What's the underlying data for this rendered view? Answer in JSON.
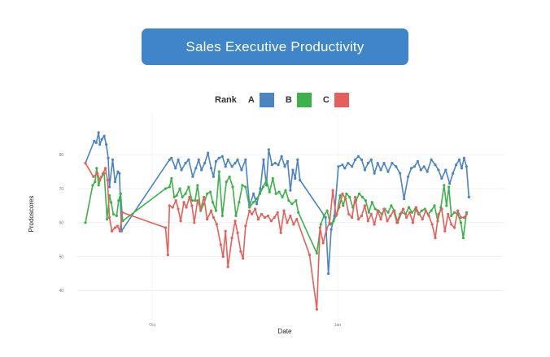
{
  "header": {
    "title": "Sales Executive Productivity"
  },
  "chart_data": {
    "type": "line",
    "title": "Sales Executive Productivity",
    "xlabel": "Date",
    "ylabel": "Prodoscores",
    "ylim": [
      31,
      92
    ],
    "yticks": [
      40,
      50,
      60,
      70,
      80
    ],
    "xticks": [
      {
        "label": "Oct",
        "pos": 0.167
      },
      {
        "label": "Jan",
        "pos": 0.63
      }
    ],
    "grid": true,
    "legend": {
      "title": "Rank",
      "placement": "top-center"
    },
    "series": [
      {
        "name": "A",
        "color": "#4a84c2",
        "points": [
          [
            0.0,
            77.5
          ],
          [
            0.022,
            84.0
          ],
          [
            0.027,
            83.5
          ],
          [
            0.033,
            86.5
          ],
          [
            0.036,
            83.0
          ],
          [
            0.041,
            84.5
          ],
          [
            0.047,
            85.5
          ],
          [
            0.052,
            83.0
          ],
          [
            0.057,
            79.0
          ],
          [
            0.06,
            70.5
          ],
          [
            0.068,
            78.5
          ],
          [
            0.074,
            72.0
          ],
          [
            0.081,
            75.0
          ],
          [
            0.085,
            74.5
          ],
          [
            0.09,
            57.5
          ],
          [
            0.21,
            78.5
          ],
          [
            0.215,
            79.0
          ],
          [
            0.225,
            76.0
          ],
          [
            0.232,
            78.5
          ],
          [
            0.24,
            75.5
          ],
          [
            0.25,
            77.5
          ],
          [
            0.258,
            78.5
          ],
          [
            0.268,
            73.5
          ],
          [
            0.276,
            76.0
          ],
          [
            0.283,
            78.5
          ],
          [
            0.29,
            75.5
          ],
          [
            0.298,
            77.5
          ],
          [
            0.306,
            80.5
          ],
          [
            0.314,
            76.0
          ],
          [
            0.32,
            73.5
          ],
          [
            0.326,
            78.0
          ],
          [
            0.334,
            79.0
          ],
          [
            0.342,
            79.5
          ],
          [
            0.35,
            76.5
          ],
          [
            0.356,
            78.5
          ],
          [
            0.366,
            76.5
          ],
          [
            0.374,
            77.5
          ],
          [
            0.38,
            78.5
          ],
          [
            0.39,
            75.5
          ],
          [
            0.4,
            78.5
          ],
          [
            0.41,
            65.0
          ],
          [
            0.42,
            68.5
          ],
          [
            0.428,
            65.5
          ],
          [
            0.437,
            70.0
          ],
          [
            0.445,
            78.5
          ],
          [
            0.452,
            71.0
          ],
          [
            0.458,
            81.5
          ],
          [
            0.466,
            77.0
          ],
          [
            0.474,
            77.5
          ],
          [
            0.482,
            77.0
          ],
          [
            0.49,
            79.5
          ],
          [
            0.498,
            76.5
          ],
          [
            0.505,
            78.0
          ],
          [
            0.512,
            69.5
          ],
          [
            0.518,
            75.5
          ],
          [
            0.524,
            73.0
          ],
          [
            0.53,
            78.5
          ],
          [
            0.536,
            72.5
          ],
          [
            0.6,
            61.5
          ],
          [
            0.607,
            45.0
          ],
          [
            0.614,
            58.0
          ],
          [
            0.622,
            62.0
          ],
          [
            0.632,
            76.5
          ],
          [
            0.642,
            77.0
          ],
          [
            0.648,
            76.0
          ],
          [
            0.656,
            77.5
          ],
          [
            0.666,
            76.5
          ],
          [
            0.674,
            78.5
          ],
          [
            0.682,
            79.5
          ],
          [
            0.69,
            78.5
          ],
          [
            0.698,
            75.5
          ],
          [
            0.706,
            77.5
          ],
          [
            0.714,
            78.5
          ],
          [
            0.722,
            74.5
          ],
          [
            0.73,
            77.5
          ],
          [
            0.738,
            75.5
          ],
          [
            0.746,
            77.5
          ],
          [
            0.756,
            75.0
          ],
          [
            0.766,
            77.5
          ],
          [
            0.776,
            76.5
          ],
          [
            0.786,
            74.5
          ],
          [
            0.796,
            67.0
          ],
          [
            0.806,
            73.5
          ],
          [
            0.814,
            76.0
          ],
          [
            0.822,
            76.5
          ],
          [
            0.83,
            78.0
          ],
          [
            0.838,
            75.5
          ],
          [
            0.846,
            76.5
          ],
          [
            0.854,
            75.0
          ],
          [
            0.864,
            78.5
          ],
          [
            0.874,
            77.0
          ],
          [
            0.882,
            75.5
          ],
          [
            0.89,
            73.0
          ],
          [
            0.9,
            75.5
          ],
          [
            0.91,
            71.5
          ],
          [
            0.918,
            74.5
          ],
          [
            0.926,
            77.0
          ],
          [
            0.934,
            78.5
          ],
          [
            0.94,
            76.0
          ],
          [
            0.946,
            79.0
          ],
          [
            0.952,
            76.5
          ],
          [
            0.958,
            67.5
          ]
        ]
      },
      {
        "name": "B",
        "color": "#3bb34a",
        "points": [
          [
            0.0,
            60.0
          ],
          [
            0.018,
            71.0
          ],
          [
            0.024,
            72.0
          ],
          [
            0.028,
            76.0
          ],
          [
            0.033,
            71.0
          ],
          [
            0.04,
            73.5
          ],
          [
            0.047,
            74.5
          ],
          [
            0.054,
            61.0
          ],
          [
            0.06,
            68.0
          ],
          [
            0.064,
            66.0
          ],
          [
            0.07,
            62.5
          ],
          [
            0.078,
            62.0
          ],
          [
            0.083,
            66.5
          ],
          [
            0.088,
            68.5
          ],
          [
            0.093,
            60.5
          ],
          [
            0.2,
            70.0
          ],
          [
            0.21,
            70.5
          ],
          [
            0.215,
            73.0
          ],
          [
            0.222,
            67.5
          ],
          [
            0.228,
            68.0
          ],
          [
            0.236,
            70.0
          ],
          [
            0.242,
            67.5
          ],
          [
            0.25,
            68.5
          ],
          [
            0.258,
            70.5
          ],
          [
            0.266,
            66.5
          ],
          [
            0.274,
            66.5
          ],
          [
            0.28,
            71.0
          ],
          [
            0.288,
            63.5
          ],
          [
            0.296,
            65.5
          ],
          [
            0.304,
            68.5
          ],
          [
            0.312,
            69.0
          ],
          [
            0.318,
            66.0
          ],
          [
            0.326,
            63.5
          ],
          [
            0.334,
            75.0
          ],
          [
            0.342,
            62.0
          ],
          [
            0.352,
            72.0
          ],
          [
            0.36,
            73.5
          ],
          [
            0.368,
            70.5
          ],
          [
            0.376,
            62.0
          ],
          [
            0.384,
            66.0
          ],
          [
            0.392,
            71.0
          ],
          [
            0.4,
            70.5
          ],
          [
            0.41,
            64.5
          ],
          [
            0.42,
            66.0
          ],
          [
            0.428,
            67.0
          ],
          [
            0.436,
            68.5
          ],
          [
            0.444,
            70.5
          ],
          [
            0.452,
            72.5
          ],
          [
            0.46,
            69.0
          ],
          [
            0.468,
            73.0
          ],
          [
            0.476,
            68.5
          ],
          [
            0.484,
            69.0
          ],
          [
            0.492,
            67.5
          ],
          [
            0.5,
            69.5
          ],
          [
            0.508,
            66.5
          ],
          [
            0.516,
            65.5
          ],
          [
            0.526,
            66.5
          ],
          [
            0.532,
            63.0
          ],
          [
            0.578,
            51.0
          ],
          [
            0.588,
            59.5
          ],
          [
            0.596,
            62.0
          ],
          [
            0.604,
            63.5
          ],
          [
            0.612,
            59.5
          ],
          [
            0.62,
            60.5
          ],
          [
            0.628,
            62.5
          ],
          [
            0.636,
            68.0
          ],
          [
            0.644,
            65.0
          ],
          [
            0.652,
            68.5
          ],
          [
            0.66,
            67.5
          ],
          [
            0.668,
            64.5
          ],
          [
            0.676,
            66.5
          ],
          [
            0.684,
            68.5
          ],
          [
            0.692,
            67.5
          ],
          [
            0.7,
            66.5
          ],
          [
            0.708,
            63.0
          ],
          [
            0.716,
            66.0
          ],
          [
            0.724,
            64.0
          ],
          [
            0.732,
            63.5
          ],
          [
            0.74,
            62.5
          ],
          [
            0.748,
            64.0
          ],
          [
            0.756,
            63.0
          ],
          [
            0.764,
            65.0
          ],
          [
            0.772,
            63.5
          ],
          [
            0.78,
            60.0
          ],
          [
            0.79,
            63.0
          ],
          [
            0.8,
            62.5
          ],
          [
            0.808,
            64.5
          ],
          [
            0.816,
            63.0
          ],
          [
            0.824,
            64.0
          ],
          [
            0.832,
            62.5
          ],
          [
            0.84,
            63.5
          ],
          [
            0.848,
            64.0
          ],
          [
            0.856,
            62.5
          ],
          [
            0.864,
            63.5
          ],
          [
            0.872,
            65.0
          ],
          [
            0.88,
            60.5
          ],
          [
            0.888,
            64.5
          ],
          [
            0.896,
            71.0
          ],
          [
            0.902,
            65.0
          ],
          [
            0.908,
            70.5
          ],
          [
            0.914,
            62.0
          ],
          [
            0.922,
            63.0
          ],
          [
            0.93,
            62.5
          ],
          [
            0.938,
            60.0
          ],
          [
            0.944,
            55.5
          ],
          [
            0.952,
            63.0
          ]
        ]
      },
      {
        "name": "C",
        "color": "#e5605a",
        "points": [
          [
            0.0,
            77.5
          ],
          [
            0.02,
            73.5
          ],
          [
            0.03,
            74.5
          ],
          [
            0.036,
            72.5
          ],
          [
            0.044,
            74.5
          ],
          [
            0.05,
            76.0
          ],
          [
            0.055,
            72.5
          ],
          [
            0.06,
            61.5
          ],
          [
            0.066,
            57.5
          ],
          [
            0.074,
            58.5
          ],
          [
            0.08,
            59.0
          ],
          [
            0.086,
            57.5
          ],
          [
            0.092,
            63.0
          ],
          [
            0.2,
            58.5
          ],
          [
            0.206,
            50.5
          ],
          [
            0.21,
            65.0
          ],
          [
            0.218,
            64.5
          ],
          [
            0.226,
            66.5
          ],
          [
            0.232,
            64.0
          ],
          [
            0.238,
            60.5
          ],
          [
            0.246,
            66.0
          ],
          [
            0.252,
            64.5
          ],
          [
            0.26,
            67.5
          ],
          [
            0.266,
            65.0
          ],
          [
            0.272,
            60.0
          ],
          [
            0.28,
            66.5
          ],
          [
            0.288,
            64.0
          ],
          [
            0.296,
            67.5
          ],
          [
            0.304,
            61.0
          ],
          [
            0.314,
            63.5
          ],
          [
            0.32,
            61.5
          ],
          [
            0.328,
            59.5
          ],
          [
            0.338,
            53.5
          ],
          [
            0.344,
            50.0
          ],
          [
            0.35,
            57.5
          ],
          [
            0.356,
            47.0
          ],
          [
            0.366,
            55.5
          ],
          [
            0.374,
            60.5
          ],
          [
            0.38,
            57.0
          ],
          [
            0.388,
            51.5
          ],
          [
            0.394,
            49.5
          ],
          [
            0.4,
            59.0
          ],
          [
            0.41,
            63.5
          ],
          [
            0.416,
            62.5
          ],
          [
            0.424,
            64.0
          ],
          [
            0.432,
            61.0
          ],
          [
            0.44,
            62.5
          ],
          [
            0.448,
            61.5
          ],
          [
            0.456,
            62.0
          ],
          [
            0.464,
            60.5
          ],
          [
            0.472,
            61.5
          ],
          [
            0.48,
            63.0
          ],
          [
            0.488,
            57.0
          ],
          [
            0.496,
            63.5
          ],
          [
            0.504,
            60.0
          ],
          [
            0.512,
            62.0
          ],
          [
            0.52,
            59.5
          ],
          [
            0.528,
            61.0
          ],
          [
            0.56,
            50.5
          ],
          [
            0.578,
            34.5
          ],
          [
            0.586,
            58.5
          ],
          [
            0.594,
            54.0
          ],
          [
            0.602,
            58.0
          ],
          [
            0.61,
            60.0
          ],
          [
            0.618,
            69.5
          ],
          [
            0.626,
            62.0
          ],
          [
            0.634,
            64.5
          ],
          [
            0.642,
            68.5
          ],
          [
            0.65,
            67.0
          ],
          [
            0.658,
            62.5
          ],
          [
            0.666,
            61.5
          ],
          [
            0.674,
            67.5
          ],
          [
            0.682,
            61.0
          ],
          [
            0.69,
            62.0
          ],
          [
            0.698,
            65.0
          ],
          [
            0.706,
            60.5
          ],
          [
            0.714,
            62.5
          ],
          [
            0.722,
            59.5
          ],
          [
            0.73,
            63.5
          ],
          [
            0.738,
            61.0
          ],
          [
            0.746,
            64.0
          ],
          [
            0.754,
            60.5
          ],
          [
            0.762,
            62.0
          ],
          [
            0.77,
            63.5
          ],
          [
            0.778,
            60.0
          ],
          [
            0.786,
            62.5
          ],
          [
            0.794,
            64.0
          ],
          [
            0.802,
            61.5
          ],
          [
            0.81,
            63.0
          ],
          [
            0.818,
            60.0
          ],
          [
            0.826,
            64.5
          ],
          [
            0.834,
            62.5
          ],
          [
            0.842,
            61.0
          ],
          [
            0.85,
            63.5
          ],
          [
            0.858,
            62.0
          ],
          [
            0.866,
            59.5
          ],
          [
            0.874,
            55.5
          ],
          [
            0.882,
            62.5
          ],
          [
            0.89,
            64.0
          ],
          [
            0.898,
            57.5
          ],
          [
            0.906,
            62.5
          ],
          [
            0.914,
            59.5
          ],
          [
            0.922,
            58.5
          ],
          [
            0.93,
            63.5
          ],
          [
            0.938,
            61.5
          ],
          [
            0.946,
            61.5
          ],
          [
            0.952,
            62.5
          ]
        ]
      }
    ]
  }
}
